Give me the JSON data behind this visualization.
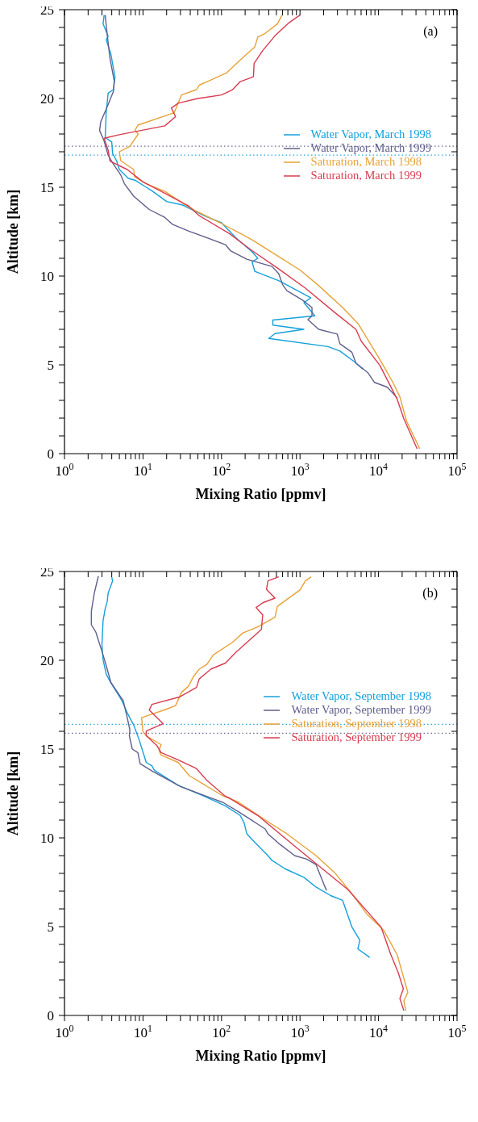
{
  "chart_data": [
    {
      "type": "line",
      "xlabel": "Mixing Ratio [ppmv]",
      "ylabel": "Altitude [km]",
      "annotations": [
        "(a)"
      ],
      "log": "x",
      "legend": "right",
      "line_style": "solid",
      "grid": false,
      "xlim": [
        1,
        100000
      ],
      "ylim": [
        0,
        25
      ],
      "xticks": [
        {
          "value": 1,
          "label": "10$^{0}$"
        },
        {
          "value": 2,
          "label": null
        },
        {
          "value": 3,
          "label": null
        },
        {
          "value": 4,
          "label": null
        },
        {
          "value": 5,
          "label": null
        },
        {
          "value": 6,
          "label": null
        },
        {
          "value": 7,
          "label": null
        },
        {
          "value": 8,
          "label": null
        },
        {
          "value": 9,
          "label": null
        },
        {
          "value": 10,
          "label": "10$^{1}$"
        },
        {
          "value": 20,
          "label": null
        },
        {
          "value": 30,
          "label": null
        },
        {
          "value": 40,
          "label": null
        },
        {
          "value": 50,
          "label": null
        },
        {
          "value": 60,
          "label": null
        },
        {
          "value": 70,
          "label": null
        },
        {
          "value": 80,
          "label": null
        },
        {
          "value": 90,
          "label": null
        },
        {
          "value": 100,
          "label": "10$^{2}$"
        },
        {
          "value": 200,
          "label": null
        },
        {
          "value": 300,
          "label": null
        },
        {
          "value": 400,
          "label": null
        },
        {
          "value": 500,
          "label": null
        },
        {
          "value": 600,
          "label": null
        },
        {
          "value": 700,
          "label": null
        },
        {
          "value": 800,
          "label": null
        },
        {
          "value": 900,
          "label": null
        },
        {
          "value": 1000,
          "label": "10$^{3}$"
        },
        {
          "value": 2000,
          "label": null
        },
        {
          "value": 3000,
          "label": null
        },
        {
          "value": 4000,
          "label": null
        },
        {
          "value": 5000,
          "label": null
        },
        {
          "value": 6000,
          "label": null
        },
        {
          "value": 7000,
          "label": null
        },
        {
          "value": 8000,
          "label": null
        },
        {
          "value": 9000,
          "label": null
        },
        {
          "value": 10000,
          "label": "10$^{4}$"
        },
        {
          "value": 20000,
          "label": null
        },
        {
          "value": 30000,
          "label": null
        },
        {
          "value": 40000,
          "label": null
        },
        {
          "value": 50000,
          "label": null
        },
        {
          "value": 60000,
          "label": null
        },
        {
          "value": 70000,
          "label": null
        },
        {
          "value": 80000,
          "label": null
        },
        {
          "value": 90000,
          "label": null
        },
        {
          "value": 100000,
          "label": "10$^{5}$"
        }
      ],
      "yticks": [
        0,
        {
          "value": 1,
          "label": null
        },
        {
          "value": 2,
          "label": null
        },
        {
          "value": 3,
          "label": null
        },
        {
          "value": 4,
          "label": null
        },
        5,
        {
          "value": 6,
          "label": null
        },
        {
          "value": 7,
          "label": null
        },
        {
          "value": 8,
          "label": null
        },
        {
          "value": 9,
          "label": null
        },
        10,
        {
          "value": 11,
          "label": null
        },
        {
          "value": 12,
          "label": null
        },
        {
          "value": 13,
          "label": null
        },
        {
          "value": 14,
          "label": null
        },
        15,
        {
          "value": 16,
          "label": null
        },
        {
          "value": 17,
          "label": null
        },
        {
          "value": 18,
          "label": null
        },
        {
          "value": 19,
          "label": null
        },
        20,
        {
          "value": 21,
          "label": null
        },
        {
          "value": 22,
          "label": null
        },
        {
          "value": 23,
          "label": null
        },
        {
          "value": 24,
          "label": null
        },
        25
      ],
      "ref_lines": [
        {
          "axis": "y",
          "value": 17.31,
          "color": "#6a6a96",
          "line_style": "dotted"
        },
        {
          "axis": "y",
          "value": 16.81,
          "color": "#2aa6de",
          "line_style": "dotted"
        }
      ],
      "series": [
        {
          "name": "Water Vapor, March 1998",
          "color": "#14a0dc",
          "x": [
            3.2,
            3.1,
            3.6,
            3.4,
            3.9,
            4.4,
            4.2,
            3.6,
            3.4,
            3.3,
            4.0,
            4.1,
            4.6,
            5.0,
            6.5,
            7.9,
            11,
            13,
            20,
            32,
            60,
            100,
            150,
            245,
            290,
            245,
            265,
            540,
            1370,
            1120,
            1550,
            450,
            450,
            1120,
            480,
            400,
            2270,
            3220,
            4950,
            6270
          ],
          "values": [
            24.7,
            24.2,
            23.5,
            23.3,
            22.5,
            21.2,
            20.5,
            20.3,
            19.25,
            17.8,
            17.55,
            16.9,
            16.5,
            16.0,
            15.5,
            15.4,
            15.0,
            14.8,
            14.2,
            14.0,
            13.4,
            13.0,
            12.18,
            11.36,
            11.0,
            10.8,
            10.27,
            9.73,
            8.78,
            8.5,
            7.76,
            7.52,
            7.24,
            7.0,
            6.76,
            6.49,
            6.03,
            5.78,
            5.17,
            4.76
          ]
        },
        {
          "name": "Water Vapor, March 1999",
          "color": "#5f5f8c",
          "x": [
            3.3,
            3.5,
            3.8,
            4.3,
            4.2,
            3.4,
            2.9,
            2.8,
            3.2,
            3.6,
            4.2,
            5.2,
            5.8,
            7.6,
            12,
            19,
            24,
            39,
            112,
            130,
            210,
            440,
            535,
            600,
            680,
            1080,
            1420,
            1420,
            1260,
            1730,
            2980,
            3220,
            4580,
            5150,
            7310,
            8890,
            13000,
            17300
          ],
          "values": [
            24.7,
            23.6,
            22.24,
            21.0,
            20.4,
            19.4,
            18.7,
            18.2,
            17.6,
            16.8,
            16.3,
            15.7,
            15.2,
            14.5,
            13.75,
            13.3,
            12.9,
            12.52,
            11.77,
            11.43,
            10.95,
            10.54,
            10.14,
            9.52,
            9.18,
            8.64,
            8.23,
            7.76,
            7.55,
            7.0,
            6.73,
            6.19,
            5.71,
            5.1,
            4.56,
            4.01,
            3.74,
            3.13
          ]
        },
        {
          "name": "Saturation, March 1998",
          "color": "#e8a236",
          "x": [
            590,
            515,
            360,
            290,
            265,
            180,
            117,
            52,
            48,
            31,
            25,
            8.6,
            7.9,
            8.7,
            6.8,
            5.0,
            5.2,
            7.6,
            7.8,
            11,
            19,
            41,
            96,
            187,
            245,
            535,
            1000,
            1730,
            3490,
            5570,
            10400,
            15300,
            18700,
            22700,
            33500
          ],
          "values": [
            24.7,
            24.2,
            23.67,
            23.46,
            22.9,
            22.24,
            21.45,
            20.75,
            20.5,
            20.2,
            19.2,
            18.5,
            18.2,
            18.0,
            17.3,
            17.0,
            16.5,
            16.0,
            15.6,
            15.2,
            14.77,
            13.8,
            13.0,
            12.32,
            12.04,
            11.1,
            10.34,
            9.46,
            8.23,
            7.28,
            5.3,
            4.0,
            3.2,
            1.84,
            0.27
          ]
        },
        {
          "name": "Saturation, March 1999",
          "color": "#d83c50",
          "x": [
            1000,
            730,
            480,
            335,
            260,
            255,
            173,
            137,
            100,
            50,
            28,
            23,
            26,
            19,
            5.0,
            3.2,
            3.6,
            3.8,
            6.3,
            10,
            16,
            38,
            52,
            126,
            245,
            535,
            1170,
            2750,
            5150,
            6030,
            10400,
            17300,
            21000,
            31000
          ],
          "values": [
            24.7,
            24.28,
            23.53,
            22.7,
            21.97,
            21.22,
            20.95,
            20.48,
            20.2,
            20.0,
            19.73,
            19.46,
            18.98,
            18.46,
            17.96,
            17.76,
            17.08,
            16.47,
            16.0,
            15.3,
            14.84,
            13.95,
            13.4,
            12.39,
            11.43,
            10.4,
            9.32,
            7.96,
            7.0,
            6.33,
            4.97,
            3.06,
            1.97,
            0.27
          ]
        }
      ]
    },
    {
      "type": "line",
      "xlabel": "Mixing Ratio [ppmv]",
      "ylabel": "Altitude [km]",
      "annotations": [
        "(b)"
      ],
      "log": "x",
      "legend": "right",
      "line_style": "solid",
      "grid": false,
      "xlim": [
        1,
        100000
      ],
      "ylim": [
        0,
        25
      ],
      "xticks": [
        {
          "value": 1,
          "label": "10$^{0}$"
        },
        {
          "value": 2,
          "label": null
        },
        {
          "value": 3,
          "label": null
        },
        {
          "value": 4,
          "label": null
        },
        {
          "value": 5,
          "label": null
        },
        {
          "value": 6,
          "label": null
        },
        {
          "value": 7,
          "label": null
        },
        {
          "value": 8,
          "label": null
        },
        {
          "value": 9,
          "label": null
        },
        {
          "value": 10,
          "label": "10$^{1}$"
        },
        {
          "value": 20,
          "label": null
        },
        {
          "value": 30,
          "label": null
        },
        {
          "value": 40,
          "label": null
        },
        {
          "value": 50,
          "label": null
        },
        {
          "value": 60,
          "label": null
        },
        {
          "value": 70,
          "label": null
        },
        {
          "value": 80,
          "label": null
        },
        {
          "value": 90,
          "label": null
        },
        {
          "value": 100,
          "label": "10$^{2}$"
        },
        {
          "value": 200,
          "label": null
        },
        {
          "value": 300,
          "label": null
        },
        {
          "value": 400,
          "label": null
        },
        {
          "value": 500,
          "label": null
        },
        {
          "value": 600,
          "label": null
        },
        {
          "value": 700,
          "label": null
        },
        {
          "value": 800,
          "label": null
        },
        {
          "value": 900,
          "label": null
        },
        {
          "value": 1000,
          "label": "10$^{3}$"
        },
        {
          "value": 2000,
          "label": null
        },
        {
          "value": 3000,
          "label": null
        },
        {
          "value": 4000,
          "label": null
        },
        {
          "value": 5000,
          "label": null
        },
        {
          "value": 6000,
          "label": null
        },
        {
          "value": 7000,
          "label": null
        },
        {
          "value": 8000,
          "label": null
        },
        {
          "value": 9000,
          "label": null
        },
        {
          "value": 10000,
          "label": "10$^{4}$"
        },
        {
          "value": 20000,
          "label": null
        },
        {
          "value": 30000,
          "label": null
        },
        {
          "value": 40000,
          "label": null
        },
        {
          "value": 50000,
          "label": null
        },
        {
          "value": 60000,
          "label": null
        },
        {
          "value": 70000,
          "label": null
        },
        {
          "value": 80000,
          "label": null
        },
        {
          "value": 90000,
          "label": null
        },
        {
          "value": 100000,
          "label": "10$^{5}$"
        }
      ],
      "yticks": [
        0,
        {
          "value": 1,
          "label": null
        },
        {
          "value": 2,
          "label": null
        },
        {
          "value": 3,
          "label": null
        },
        {
          "value": 4,
          "label": null
        },
        5,
        {
          "value": 6,
          "label": null
        },
        {
          "value": 7,
          "label": null
        },
        {
          "value": 8,
          "label": null
        },
        {
          "value": 9,
          "label": null
        },
        10,
        {
          "value": 11,
          "label": null
        },
        {
          "value": 12,
          "label": null
        },
        {
          "value": 13,
          "label": null
        },
        {
          "value": 14,
          "label": null
        },
        15,
        {
          "value": 16,
          "label": null
        },
        {
          "value": 17,
          "label": null
        },
        {
          "value": 18,
          "label": null
        },
        {
          "value": 19,
          "label": null
        },
        20,
        {
          "value": 21,
          "label": null
        },
        {
          "value": 22,
          "label": null
        },
        {
          "value": 23,
          "label": null
        },
        {
          "value": 24,
          "label": null
        },
        25
      ],
      "ref_lines": [
        {
          "axis": "y",
          "value": 16.39,
          "color": "#2aa6de",
          "line_style": "dotted"
        },
        {
          "axis": "y",
          "value": 15.89,
          "color": "#6a6a96",
          "line_style": "dotted"
        }
      ],
      "series": [
        {
          "name": "Water Vapor, September 1998",
          "color": "#14a0dc",
          "x": [
            4.0,
            4.1,
            3.6,
            3.5,
            3.3,
            3.1,
            3.0,
            3.1,
            3.4,
            3.8,
            5.4,
            6.3,
            7.6,
            8.9,
            11,
            13,
            14,
            28,
            65,
            112,
            173,
            194,
            210,
            265,
            390,
            440,
            650,
            1120,
            1600,
            2450,
            3490,
            4580,
            5790,
            5450,
            7730
          ],
          "values": [
            24.67,
            24.47,
            23.79,
            23.31,
            22.9,
            22.22,
            20.86,
            20.04,
            19.22,
            18.81,
            17.72,
            17.04,
            16.36,
            15.54,
            14.25,
            14.05,
            13.8,
            12.96,
            12.28,
            11.8,
            11.26,
            10.85,
            10.23,
            9.75,
            9.0,
            8.73,
            8.25,
            7.78,
            7.23,
            6.75,
            6.48,
            4.98,
            4.23,
            3.75,
            3.27
          ]
        },
        {
          "name": "Water Vapor, September 1999",
          "color": "#5f5f8c",
          "x": [
            2.7,
            2.4,
            2.2,
            2.2,
            2.2,
            2.5,
            3.1,
            3.5,
            3.9,
            5.6,
            6.2,
            6.8,
            6.7,
            7.3,
            8.6,
            9.2,
            13,
            30,
            70,
            104,
            166,
            245,
            360,
            390,
            535,
            855,
            1220,
            1600,
            2020,
            2180
          ],
          "values": [
            24.74,
            23.79,
            22.77,
            22.36,
            22.0,
            21.6,
            20.3,
            19.5,
            18.75,
            17.72,
            16.9,
            16.09,
            15.75,
            15.0,
            14.8,
            14.18,
            13.77,
            12.89,
            12.28,
            12.0,
            11.46,
            10.98,
            10.5,
            10.23,
            9.69,
            9.0,
            8.8,
            8.49,
            7.37,
            7.03
          ]
        },
        {
          "name": "Saturation, September 1998",
          "color": "#e8a236",
          "x": [
            1390,
            1170,
            1000,
            515,
            480,
            290,
            187,
            137,
            79,
            65,
            52,
            44,
            38,
            31,
            26,
            20,
            9.6,
            10,
            11,
            17,
            16,
            17,
            28,
            39,
            100,
            166,
            390,
            680,
            1600,
            2750,
            4400,
            7030,
            11700,
            17300,
            23600,
            21000,
            22300
          ],
          "values": [
            24.7,
            24.47,
            23.96,
            23.04,
            22.43,
            21.88,
            21.54,
            21.0,
            20.31,
            19.77,
            19.5,
            19.09,
            18.54,
            18.2,
            17.45,
            17.25,
            16.77,
            15.95,
            15.75,
            15.25,
            14.93,
            14.66,
            14.25,
            13.5,
            12.41,
            12.0,
            10.91,
            10.23,
            9.0,
            8.05,
            6.96,
            5.73,
            4.78,
            3.41,
            1.3,
            0.82,
            0.27
          ]
        },
        {
          "name": "Saturation, September 1999",
          "color": "#d83c50",
          "x": [
            535,
            390,
            375,
            480,
            335,
            276,
            335,
            322,
            210,
            153,
            112,
            73,
            52,
            48,
            29,
            13,
            12,
            18,
            11,
            11,
            15,
            17,
            28,
            48,
            65,
            112,
            122,
            290,
            925,
            4070,
            10800,
            14200,
            17900,
            20700,
            18700,
            21000
          ],
          "values": [
            24.7,
            24.47,
            23.99,
            23.5,
            23.24,
            22.97,
            22.56,
            21.74,
            21.0,
            20.45,
            19.84,
            19.5,
            18.95,
            18.47,
            17.93,
            17.52,
            17.2,
            16.43,
            16.02,
            15.75,
            15.2,
            14.8,
            14.39,
            13.9,
            13.24,
            12.34,
            12.28,
            11.26,
            9.41,
            7.09,
            4.97,
            3.48,
            2.39,
            1.5,
            0.95,
            0.27
          ]
        }
      ]
    }
  ]
}
